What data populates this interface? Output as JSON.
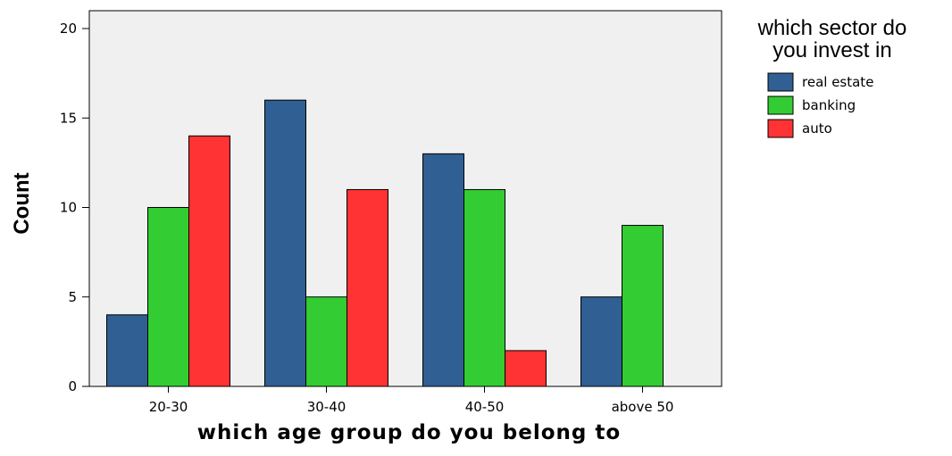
{
  "chart_data": {
    "type": "bar",
    "categories": [
      "20-30",
      "30-40",
      "40-50",
      "above 50"
    ],
    "series": [
      {
        "name": "real estate",
        "values": [
          4,
          16,
          13,
          5
        ],
        "color": "#2f5f93"
      },
      {
        "name": "banking",
        "values": [
          10,
          5,
          11,
          9
        ],
        "color": "#33cc33"
      },
      {
        "name": "auto",
        "values": [
          14,
          11,
          2,
          0
        ],
        "color": "#ff3333"
      }
    ],
    "title": "",
    "xlabel": "which age group do you belong to",
    "ylabel": "Count",
    "ylim": [
      0,
      20
    ],
    "yticks": [
      0,
      5,
      10,
      15,
      20
    ],
    "legend": {
      "title_line1": "which sector do",
      "title_line2": "you invest in",
      "position": "right"
    },
    "plot_background": "#f0f0f0",
    "grid": false
  }
}
